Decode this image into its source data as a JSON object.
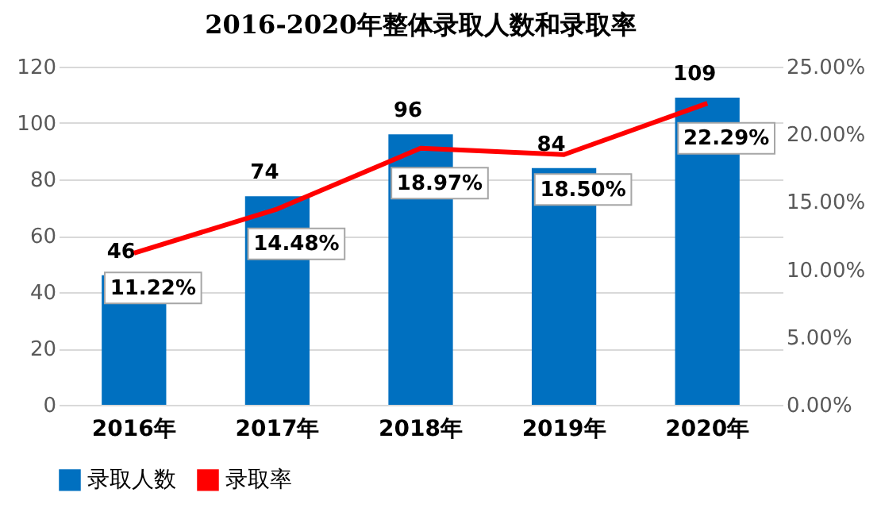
{
  "chart_data": {
    "type": "bar",
    "title": "2016-2020年整体录取人数和录取率",
    "categories": [
      "2016年",
      "2017年",
      "2018年",
      "2019年",
      "2020年"
    ],
    "series": [
      {
        "name": "录取人数",
        "color": "#0070c0",
        "values": [
          46,
          74,
          96,
          84,
          109
        ],
        "value_labels": [
          "46",
          "74",
          "96",
          "84",
          "109"
        ]
      },
      {
        "name": "录取率",
        "type": "line",
        "axis": "y2",
        "color": "#ff0000",
        "values": [
          11.22,
          14.48,
          18.97,
          18.5,
          22.29
        ],
        "value_labels": [
          "11.22%",
          "14.48%",
          "18.97%",
          "18.50%",
          "22.29%"
        ]
      }
    ],
    "ylim": [
      0,
      120
    ],
    "yticks": [
      0,
      20,
      40,
      60,
      80,
      100,
      120
    ],
    "y2lim": [
      0,
      25
    ],
    "y2ticks": [
      {
        "value": 0,
        "label": "0.00%"
      },
      {
        "value": 5,
        "label": "5.00%"
      },
      {
        "value": 10,
        "label": "10.00%"
      },
      {
        "value": 15,
        "label": "15.00%"
      },
      {
        "value": 20,
        "label": "20.00%"
      },
      {
        "value": 25,
        "label": "25.00%"
      }
    ],
    "grid": "y",
    "legend": "bottom",
    "marker": "none",
    "line_style": "solid"
  }
}
